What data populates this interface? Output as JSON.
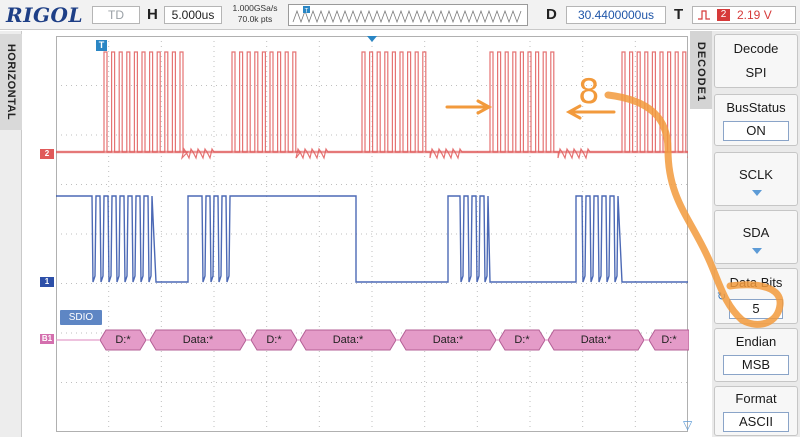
{
  "brand": "RIGOL",
  "status": "TD",
  "horizontal": {
    "h_label": "H",
    "timebase": "5.000us",
    "sample_rate": "1.000GSa/s",
    "memory_points": "70.0k pts",
    "delay_label": "D",
    "delay": "30.4400000us"
  },
  "trigger": {
    "t_label": "T",
    "edge_icon": "rising-edge-icon",
    "source": "2",
    "level": "2.19 V",
    "color": "#d63a3a"
  },
  "left_tab": "HORIZONTAL",
  "channels": {
    "ch2_label": "2",
    "ch1_label": "1",
    "bus_label": "B1",
    "ch2_color": "#e05a5a",
    "ch1_color": "#2d4fa8",
    "bus_color": "#e49bc8"
  },
  "trigger_pos_marker": "T",
  "bus_tag": "SDIO",
  "decode_packets": [
    {
      "label": "D:*"
    },
    {
      "label": "Data:*"
    },
    {
      "label": "D:*"
    },
    {
      "label": "Data:*"
    },
    {
      "label": "Data:*"
    },
    {
      "label": "D:*"
    },
    {
      "label": "Data:*"
    },
    {
      "label": "D:*"
    }
  ],
  "menu": {
    "title": "DECODE1",
    "items": [
      {
        "label": "Decode",
        "value": "SPI"
      },
      {
        "label": "BusStatus",
        "value": "ON"
      },
      {
        "label": "SCLK"
      },
      {
        "label": "SDA"
      },
      {
        "label": "Data Bits",
        "value": "5"
      },
      {
        "label": "Endian",
        "value": "MSB"
      },
      {
        "label": "Format",
        "value": "ASCII"
      }
    ]
  },
  "annotation": {
    "number": "8",
    "color": "#f29a3c"
  }
}
